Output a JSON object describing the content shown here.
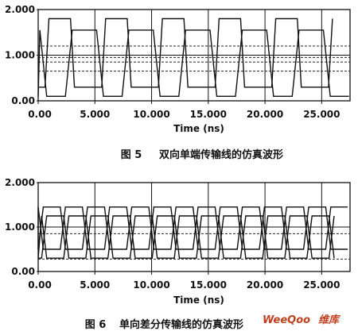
{
  "chart_data": [
    {
      "type": "line",
      "title": "",
      "caption_number": "图 5",
      "caption_text": "双向单端传输线的仿真波形",
      "xlabel": "Time (ns)",
      "ylabel": "",
      "xlim": [
        0,
        27.5
      ],
      "ylim": [
        0,
        2.0
      ],
      "x_ticks": [
        "0.00",
        "5.000",
        "10.000",
        "15.000",
        "20.000",
        "25.000"
      ],
      "x_tick_values": [
        0,
        5,
        10,
        15,
        20,
        25
      ],
      "y_ticks": [
        "0.00",
        "1.000",
        "2.000"
      ],
      "y_tick_values": [
        0,
        1,
        2
      ],
      "period_ns": 5.0,
      "series": [
        {
          "low": 0.3,
          "high": 1.8,
          "offset_ns": 0.6,
          "duty": 0.45,
          "rise_ns": 0.35,
          "style": "solid"
        },
        {
          "low": 0.1,
          "high": 1.55,
          "offset_ns": 2.4,
          "duty": 0.55,
          "rise_ns": 0.6,
          "style": "solid"
        }
      ],
      "reference_levels": [
        {
          "value": 1.2,
          "style": "dashed"
        },
        {
          "value": 0.95,
          "style": "dashed"
        },
        {
          "value": 0.85,
          "style": "dashed"
        },
        {
          "value": 0.65,
          "style": "dashed"
        }
      ]
    },
    {
      "type": "line",
      "title": "",
      "caption_number": "图 6",
      "caption_text": "单向差分传输线的仿真波形",
      "xlabel": "Time (ns)",
      "ylabel": "",
      "xlim": [
        0,
        27.5
      ],
      "ylim": [
        0,
        2.0
      ],
      "x_ticks": [
        "0.00",
        "5.000",
        "10.000",
        "15.000",
        "20.000",
        "25.000"
      ],
      "x_tick_values": [
        0,
        5,
        10,
        15,
        20,
        25
      ],
      "y_ticks": [
        "0.00",
        "1.000",
        "2.000"
      ],
      "y_tick_values": [
        0,
        1,
        2
      ],
      "period_ns": 3.9,
      "series": [
        {
          "low": 0.5,
          "high": 1.45,
          "offset_ns": 0.0,
          "duty": 0.5,
          "rise_ns": 0.45,
          "style": "solid"
        },
        {
          "low": 0.5,
          "high": 1.45,
          "offset_ns": 1.95,
          "duty": 0.5,
          "rise_ns": 0.45,
          "style": "solid"
        },
        {
          "low": 0.3,
          "high": 1.25,
          "offset_ns": 0.3,
          "duty": 0.5,
          "rise_ns": 0.45,
          "style": "solid"
        },
        {
          "low": 0.3,
          "high": 1.25,
          "offset_ns": 2.25,
          "duty": 0.5,
          "rise_ns": 0.45,
          "style": "solid"
        }
      ],
      "reference_levels": [
        {
          "value": 0.85,
          "style": "dashed"
        },
        {
          "value": 0.28,
          "style": "dashed"
        }
      ]
    }
  ],
  "watermark": {
    "brand": "WeeQoo",
    "suffix": "维库",
    "color": "#c04020"
  }
}
